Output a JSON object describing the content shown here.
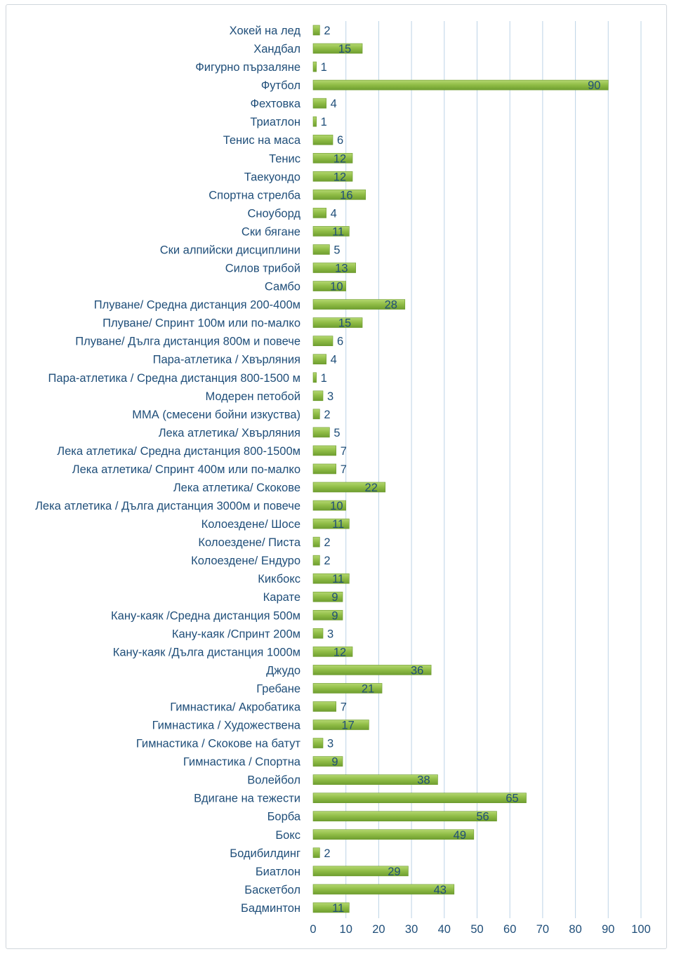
{
  "chart_data": {
    "type": "bar",
    "orientation": "horizontal",
    "categories": [
      "Хокей на лед",
      "Хандбал",
      "Фигурно пързаляне",
      "Футбол",
      "Фехтовка",
      "Триатлон",
      "Тенис на маса",
      "Тенис",
      "Таекуондо",
      "Спортна стрелба",
      "Сноуборд",
      "Ски бягане",
      "Ски алпийски дисциплини",
      "Силов трибой",
      "Самбо",
      "Плуване/ Средна дистанция 200-400м",
      "Плуване/ Спринт 100м или по-малко",
      "Плуване/ Дълга дистанция 800м и повече",
      "Пара-атлетика / Хвърляния",
      "Пара-атлетика / Средна дистанция 800-1500 м",
      "Модерен петобой",
      "ММА (смесени бойни изкуства)",
      "Лека атлетика/ Хвърляния",
      "Лека атлетика/ Средна дистанция 800-1500м",
      "Лека атлетика/ Спринт 400м или по-малко",
      "Лека атлетика/ Скокове",
      "Лека атлетика / Дълга дистанция 3000м и повече",
      "Колоездене/ Шосе",
      "Колоездене/ Писта",
      "Колоездене/ Ендуро",
      "Кикбокс",
      "Карате",
      "Кану-каяк /Средна дистанция 500м",
      "Кану-каяк /Спринт 200м",
      "Кану-каяк /Дълга дистанция 1000м",
      "Джудо",
      "Гребане",
      "Гимнастика/ Акробатика",
      "Гимнастика / Художествена",
      "Гимнастика / Скокове на батут",
      "Гимнастика / Спортна",
      "Волейбол",
      "Вдигане на тежести",
      "Борба",
      "Бокс",
      "Бодибилдинг",
      "Биатлон",
      "Баскетбол",
      "Бадминтон"
    ],
    "values": [
      2,
      15,
      1,
      90,
      4,
      1,
      6,
      12,
      12,
      16,
      4,
      11,
      5,
      13,
      10,
      28,
      15,
      6,
      4,
      1,
      3,
      2,
      5,
      7,
      7,
      22,
      10,
      11,
      2,
      2,
      11,
      9,
      9,
      3,
      12,
      36,
      21,
      7,
      17,
      3,
      9,
      38,
      65,
      56,
      49,
      2,
      29,
      43,
      11
    ],
    "xlim": [
      0,
      100
    ],
    "xticks": [
      0,
      10,
      20,
      30,
      40,
      50,
      60,
      70,
      80,
      90,
      100
    ],
    "grid": true,
    "bar_color": "#8fbc45",
    "bar_edge_color": "#6b9a2c",
    "text_color": "#1f4e79",
    "grid_color": "#bcd3e6"
  }
}
